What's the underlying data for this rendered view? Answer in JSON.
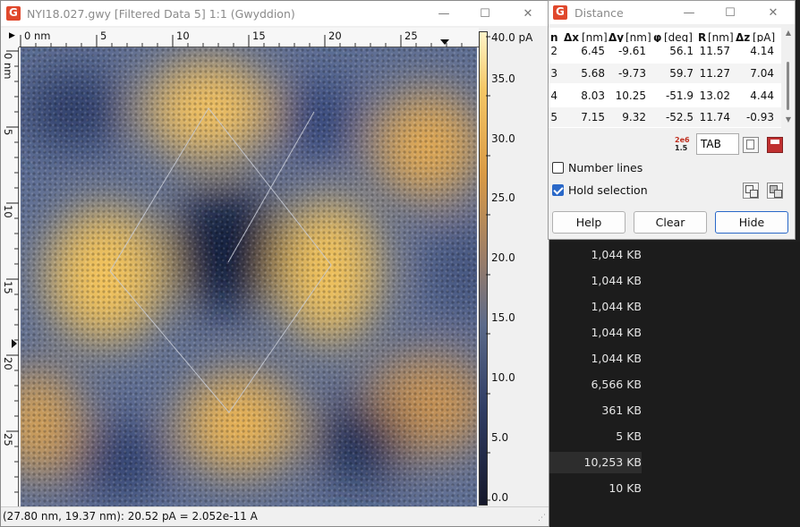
{
  "main_window": {
    "title": "NYI18.027.gwy [Filtered Data 5] 1:1 (Gwyddion)",
    "hruler_labels": [
      "0 nm",
      "5",
      "10",
      "15",
      "20",
      "25"
    ],
    "vruler_labels": [
      "0 nm",
      "5",
      "10",
      "15",
      "20",
      "25"
    ],
    "colorbar_labels": [
      "40.0 pA",
      "35.0",
      "30.0",
      "25.0",
      "20.0",
      "15.0",
      "10.0",
      "5.0",
      "0.0"
    ],
    "status": "(27.80 nm, 19.37 nm): 20.52 pA = 2.052e-11 A"
  },
  "distance_dialog": {
    "title": "Distance",
    "headers": [
      "n",
      "Δx",
      "[nm]",
      "Δy",
      "[nm]",
      "φ",
      "[deg]",
      "R",
      "[nm]",
      "Δz",
      "[pA]"
    ],
    "rows": [
      {
        "n": "2",
        "dx": "6.45",
        "dy": "-9.61",
        "phi": "56.1",
        "r": "11.57",
        "dz": "4.14"
      },
      {
        "n": "3",
        "dx": "5.68",
        "dy": "-9.73",
        "phi": "59.7",
        "r": "11.27",
        "dz": "7.04"
      },
      {
        "n": "4",
        "dx": "8.03",
        "dy": "10.25",
        "phi": "-51.9",
        "r": "13.02",
        "dz": "4.44"
      },
      {
        "n": "5",
        "dx": "7.15",
        "dy": "9.32",
        "phi": "-52.5",
        "r": "11.74",
        "dz": "-0.93"
      }
    ],
    "format_select": "TAB",
    "format_icon_top": "2e6",
    "format_icon_bottom": "1.5",
    "number_lines_label": "Number lines",
    "hold_selection_label": "Hold selection",
    "help_label": "Help",
    "clear_label": "Clear",
    "hide_label": "Hide"
  },
  "background_list": {
    "sizes": [
      "1,044 KB",
      "1,044 KB",
      "1,044 KB",
      "1,044 KB",
      "1,044 KB",
      "6,566 KB",
      "361 KB",
      "5 KB",
      "10,253 KB",
      "10 KB"
    ]
  }
}
